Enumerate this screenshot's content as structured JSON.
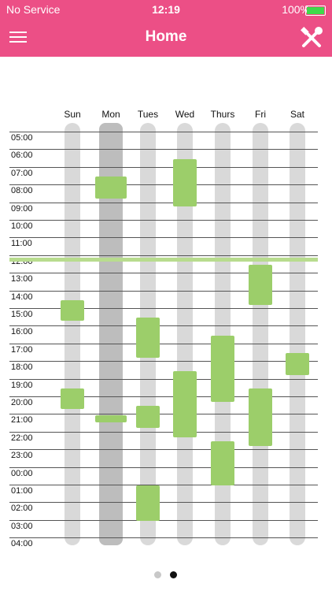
{
  "status_bar": {
    "carrier": "No Service",
    "time": "12:19",
    "battery": "100%"
  },
  "header": {
    "title": "Home",
    "menu_icon": "hamburger-menu-icon",
    "tools_icon": "tools-icon"
  },
  "days": [
    "Sun",
    "Mon",
    "Tues",
    "Wed",
    "Thurs",
    "Fri",
    "Sat"
  ],
  "selected_day": "Mon",
  "times": [
    "05:00",
    "06:00",
    "07:00",
    "08:00",
    "09:00",
    "10:00",
    "11:00",
    "12:00",
    "13:00",
    "14:00",
    "15:00",
    "16:00",
    "17:00",
    "18:00",
    "19:00",
    "20:00",
    "21:00",
    "22:00",
    "23:00",
    "00:00",
    "01:00",
    "02:00",
    "03:00",
    "04:00"
  ],
  "current_time_marker": "12:00",
  "events": [
    {
      "day": "Sun",
      "start": "15:00",
      "end": "16:10"
    },
    {
      "day": "Sun",
      "start": "20:00",
      "end": "21:10"
    },
    {
      "day": "Mon",
      "start": "08:00",
      "end": "09:15"
    },
    {
      "day": "Mon",
      "start": "21:30",
      "end": "21:55"
    },
    {
      "day": "Tues",
      "start": "16:00",
      "end": "18:15"
    },
    {
      "day": "Tues",
      "start": "21:00",
      "end": "22:15"
    },
    {
      "day": "Tues",
      "start": "01:30",
      "end": "03:30"
    },
    {
      "day": "Wed",
      "start": "07:00",
      "end": "09:40"
    },
    {
      "day": "Wed",
      "start": "19:00",
      "end": "22:45"
    },
    {
      "day": "Thurs",
      "start": "17:00",
      "end": "20:45"
    },
    {
      "day": "Thurs",
      "start": "23:00",
      "end": "01:30"
    },
    {
      "day": "Fri",
      "start": "13:00",
      "end": "15:15"
    },
    {
      "day": "Fri",
      "start": "20:00",
      "end": "23:15"
    },
    {
      "day": "Sat",
      "start": "18:00",
      "end": "19:15"
    }
  ],
  "pager": {
    "count": 2,
    "active": 1
  },
  "colors": {
    "header": "#ec4f86",
    "event": "#9cce6a",
    "now_line": "#b8dc8e"
  }
}
